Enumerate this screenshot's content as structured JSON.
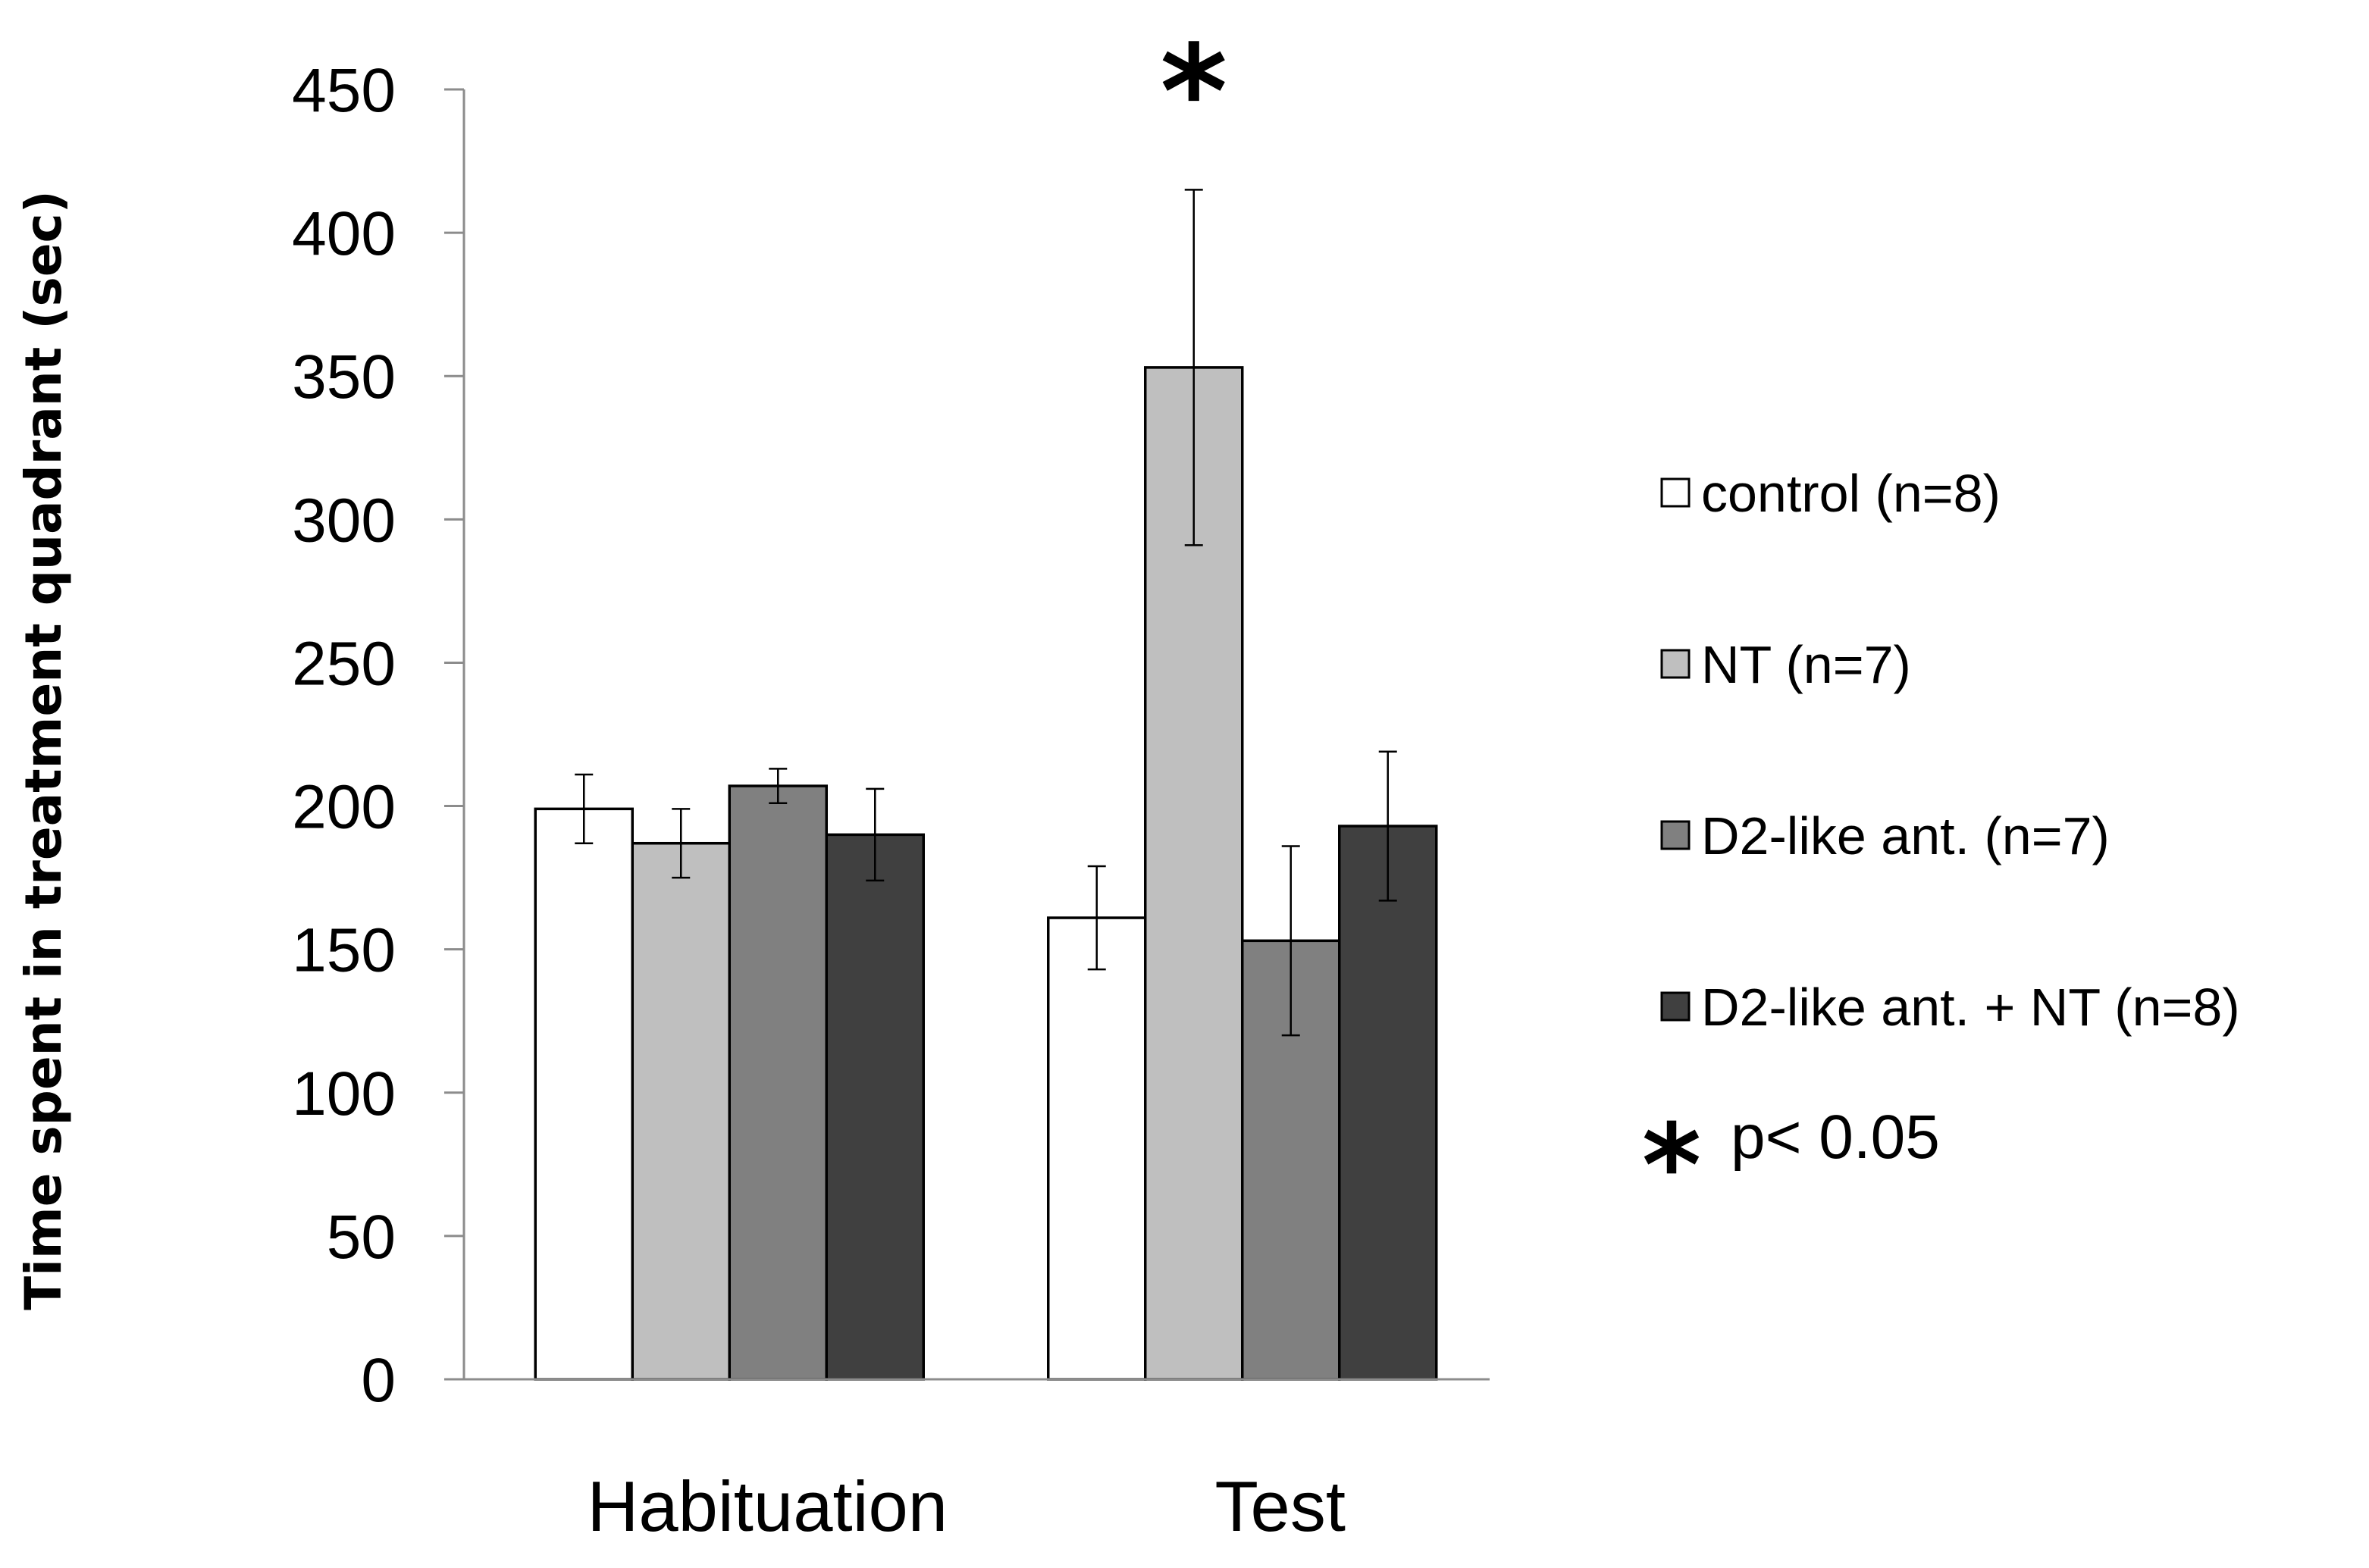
{
  "chart_data": {
    "type": "bar",
    "title": "",
    "xlabel": "",
    "ylabel": "Time spent in treatment quadrant (sec)",
    "ylim": [
      0,
      450
    ],
    "yticks": [
      0,
      50,
      100,
      150,
      200,
      250,
      300,
      350,
      400,
      450
    ],
    "categories": [
      "Habituation",
      "Test"
    ],
    "series": [
      {
        "name": "control (n=8)",
        "color": "#ffffff",
        "values": [
          199,
          161
        ],
        "errors": [
          12,
          18
        ]
      },
      {
        "name": "NT (n=7)",
        "color": "#bfbfbf",
        "values": [
          187,
          353
        ],
        "errors": [
          12,
          62
        ]
      },
      {
        "name": "D2-like ant. (n=7)",
        "color": "#808080",
        "values": [
          207,
          153
        ],
        "errors": [
          6,
          33
        ]
      },
      {
        "name": "D2-like ant. + NT (n=8)",
        "color": "#404040",
        "values": [
          190,
          193
        ],
        "errors": [
          16,
          26
        ]
      }
    ],
    "significance": {
      "category": "Test",
      "series": "NT (n=7)",
      "marker": "*"
    },
    "note": {
      "marker": "*",
      "text": "p< 0.05"
    },
    "grid": false,
    "legend_position": "right"
  }
}
